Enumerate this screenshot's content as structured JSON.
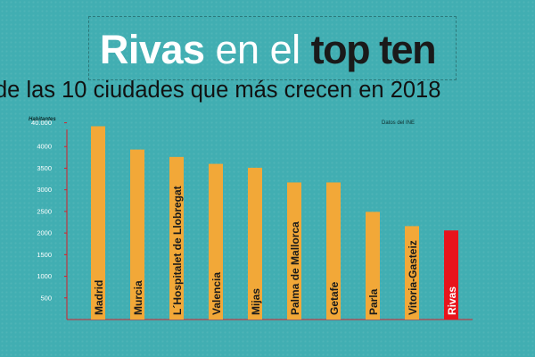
{
  "header": {
    "title_part1": "Rivas",
    "title_part2": " en el ",
    "title_part3": "top ten",
    "subtitle": "de las 10 ciudades que más crecen en 2018",
    "source": "Datos del INE"
  },
  "colors": {
    "background": "#41aeb2",
    "bar": "#f2a838",
    "highlight": "#e8141c",
    "axis": "#d8202a"
  },
  "chart_data": {
    "type": "bar",
    "title": "",
    "ylabel": "Habitantes",
    "xlabel": "",
    "ylim": [
      0,
      4500
    ],
    "yticks": [
      500,
      1000,
      1500,
      2000,
      2500,
      3000,
      3500,
      4000
    ],
    "ytick_labels": [
      "500",
      "1000",
      "1500",
      "2000",
      "2500",
      "3000",
      "3500",
      "4000"
    ],
    "top_tick": {
      "value": 4550,
      "label": "40.000"
    },
    "categories": [
      "Madrid",
      "Murcia",
      "L´Hospitalet de Llobregat",
      "Valencia",
      "Mijas",
      "Palma de Mallorca",
      "Getafe",
      "Parla",
      "Vitoria-Gasteiz",
      "Rivas"
    ],
    "values": [
      4470,
      3930,
      3760,
      3600,
      3510,
      3170,
      3170,
      2490,
      2160,
      2060
    ],
    "highlight": "Rivas",
    "grid": false,
    "legend": "none"
  }
}
